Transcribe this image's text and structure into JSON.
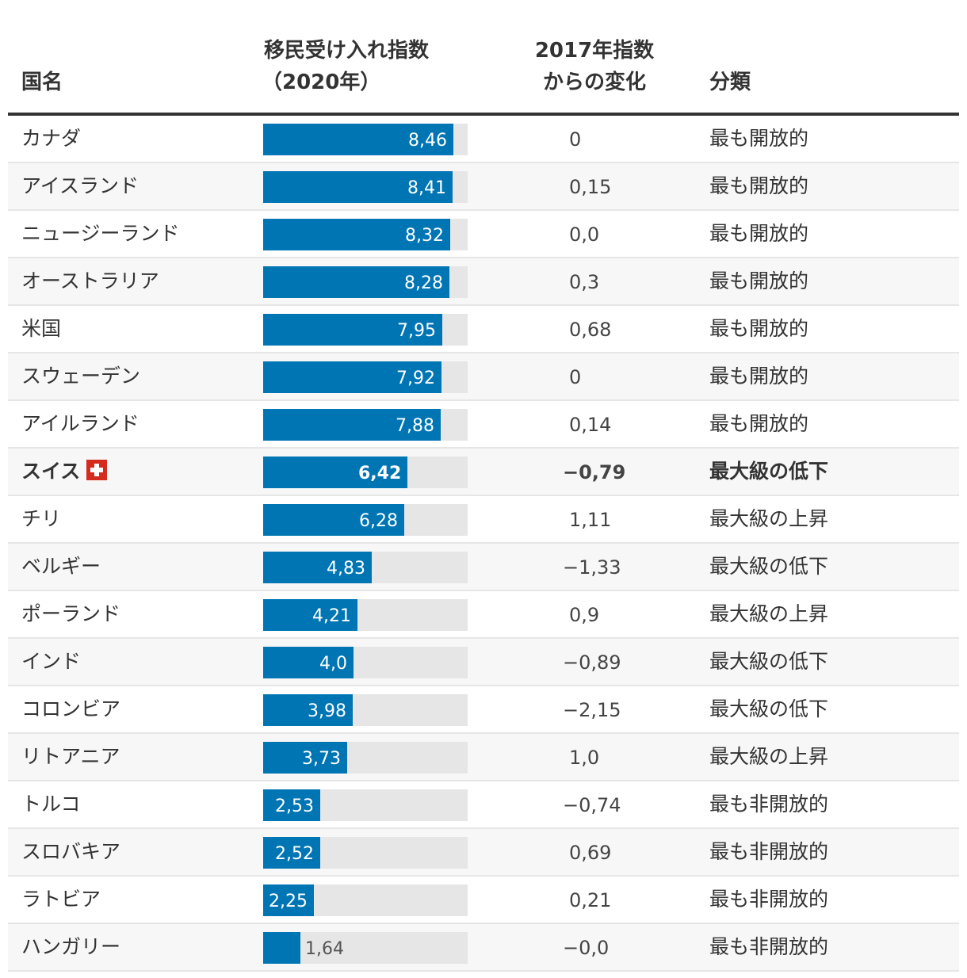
{
  "chart_data": {
    "type": "table",
    "columns": {
      "country": "国名",
      "index_line1": "移民受け入れ指数",
      "index_line2": "（2020年）",
      "change_line1": "2017年指数",
      "change_line2": "からの変化",
      "classification": "分類"
    },
    "max_value": 10,
    "colors": {
      "bar": "#0075b4",
      "track": "#e6e6e6",
      "flag": "#d52b1e"
    },
    "rows": [
      {
        "country": "カナダ",
        "value": 8.46,
        "value_label": "8,46",
        "change": "0",
        "classification": "最も開放的"
      },
      {
        "country": "アイスランド",
        "value": 8.41,
        "value_label": "8,41",
        "change": "0,15",
        "classification": "最も開放的"
      },
      {
        "country": "ニュージーランド",
        "value": 8.32,
        "value_label": "8,32",
        "change": "0,0",
        "classification": "最も開放的"
      },
      {
        "country": "オーストラリア",
        "value": 8.28,
        "value_label": "8,28",
        "change": "0,3",
        "classification": "最も開放的"
      },
      {
        "country": "米国",
        "value": 7.95,
        "value_label": "7,95",
        "change": "0,68",
        "classification": "最も開放的"
      },
      {
        "country": "スウェーデン",
        "value": 7.92,
        "value_label": "7,92",
        "change": "0",
        "classification": "最も開放的"
      },
      {
        "country": "アイルランド",
        "value": 7.88,
        "value_label": "7,88",
        "change": "0,14",
        "classification": "最も開放的"
      },
      {
        "country": "スイス",
        "value": 6.42,
        "value_label": "6,42",
        "change": "−0,79",
        "classification": "最大級の低下",
        "highlight": true,
        "flag": "swiss-flag-icon"
      },
      {
        "country": "チリ",
        "value": 6.28,
        "value_label": "6,28",
        "change": "1,11",
        "classification": "最大級の上昇"
      },
      {
        "country": "ベルギー",
        "value": 4.83,
        "value_label": "4,83",
        "change": "−1,33",
        "classification": "最大級の低下"
      },
      {
        "country": "ポーランド",
        "value": 4.21,
        "value_label": "4,21",
        "change": "0,9",
        "classification": "最大級の上昇"
      },
      {
        "country": "インド",
        "value": 4.0,
        "value_label": "4,0",
        "change": "−0,89",
        "classification": "最大級の低下"
      },
      {
        "country": "コロンビア",
        "value": 3.98,
        "value_label": "3,98",
        "change": "−2,15",
        "classification": "最大級の低下"
      },
      {
        "country": "リトアニア",
        "value": 3.73,
        "value_label": "3,73",
        "change": "1,0",
        "classification": "最大級の上昇"
      },
      {
        "country": "トルコ",
        "value": 2.53,
        "value_label": "2,53",
        "change": "−0,74",
        "classification": "最も非開放的"
      },
      {
        "country": "スロバキア",
        "value": 2.52,
        "value_label": "2,52",
        "change": "0,69",
        "classification": "最も非開放的"
      },
      {
        "country": "ラトビア",
        "value": 2.25,
        "value_label": "2,25",
        "change": "0,21",
        "classification": "最も非開放的"
      },
      {
        "country": "ハンガリー",
        "value": 1.64,
        "value_label": "1,64",
        "change": "−0,0",
        "classification": "最も非開放的"
      }
    ]
  }
}
